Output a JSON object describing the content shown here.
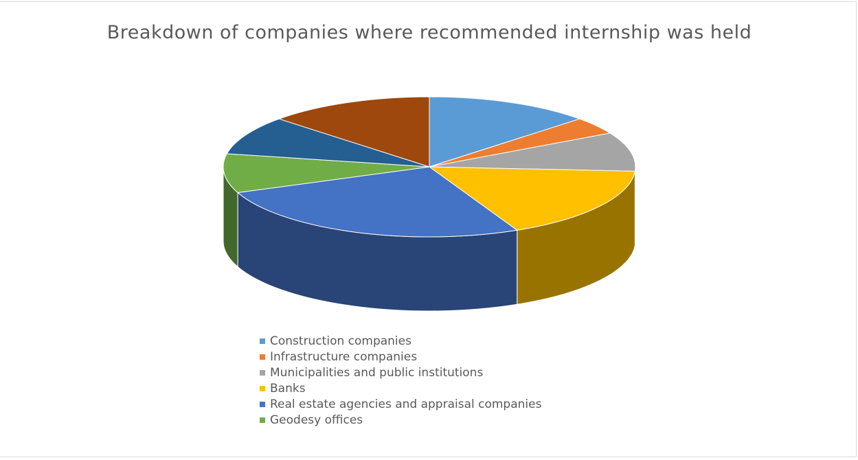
{
  "chart_data": {
    "type": "pie3d",
    "title": "Breakdown of companies where recommended internship was held",
    "categories": [
      "Construction companies",
      "Infrastructure companies",
      "Municipalities and public institutions",
      "Banks",
      "Real estate agencies and appraisal companies",
      "Geodesy offices",
      null,
      null
    ],
    "values": [
      13,
      4,
      9,
      17,
      26,
      9,
      9,
      13
    ],
    "colors": [
      "#5b9bd5",
      "#ed7d31",
      "#a5a5a5",
      "#ffc000",
      "#4472c4",
      "#70ad47",
      "#255e91",
      "#9e480e"
    ]
  }
}
